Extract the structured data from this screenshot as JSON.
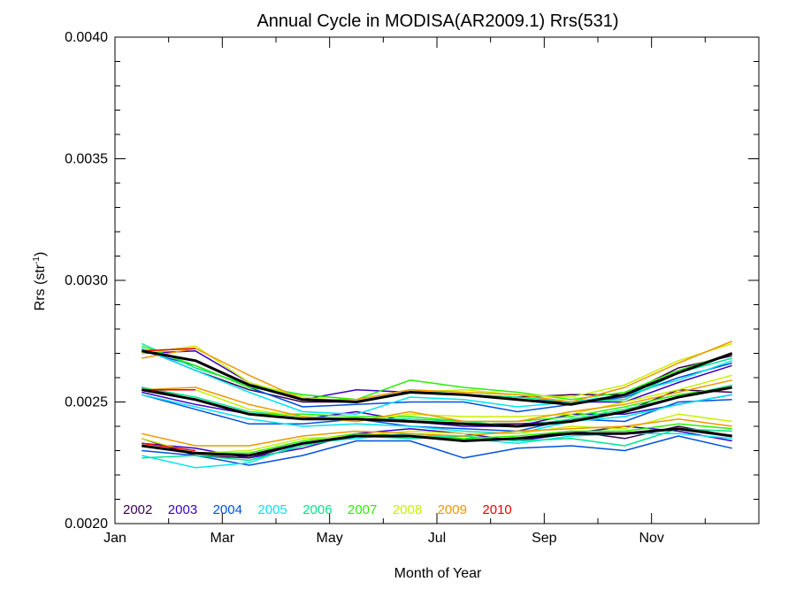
{
  "chart_data": {
    "type": "line",
    "title": "Annual Cycle in MODISA(AR2009.1) Rrs(531)",
    "xlabel": "Month of Year",
    "ylabel_main": "Rrs (str",
    "ylabel_sup": "-1",
    "ylabel_close": ")",
    "xlim": [
      0.5,
      12.5
    ],
    "ylim": [
      0.002,
      0.004
    ],
    "x_ticks": [
      {
        "value": 0.5,
        "label": "Jan"
      },
      {
        "value": 2.5,
        "label": "Mar"
      },
      {
        "value": 4.5,
        "label": "May"
      },
      {
        "value": 6.5,
        "label": "Jul"
      },
      {
        "value": 8.5,
        "label": "Sep"
      },
      {
        "value": 10.5,
        "label": "Nov"
      }
    ],
    "y_ticks": [
      {
        "value": 0.002,
        "label": "0.0020"
      },
      {
        "value": 0.0025,
        "label": "0.0025"
      },
      {
        "value": 0.003,
        "label": "0.0030"
      },
      {
        "value": 0.0035,
        "label": "0.0035"
      },
      {
        "value": 0.004,
        "label": "0.0040"
      }
    ],
    "x": [
      1,
      2,
      3,
      4,
      5,
      6,
      7,
      8,
      9,
      10,
      11,
      12
    ],
    "legend": [
      {
        "label": "2002",
        "color": "#3c0050"
      },
      {
        "label": "2003",
        "color": "#3a00c8"
      },
      {
        "label": "2004",
        "color": "#0050e0"
      },
      {
        "label": "2005",
        "color": "#00e6f0"
      },
      {
        "label": "2006",
        "color": "#00e68c"
      },
      {
        "label": "2007",
        "color": "#28f000"
      },
      {
        "label": "2008",
        "color": "#c8f000"
      },
      {
        "label": "2009",
        "color": "#f09600"
      },
      {
        "label": "2010",
        "color": "#f00000"
      }
    ],
    "series": [
      {
        "color": "#3c0050",
        "width": 1.5,
        "values": [
          0.00272,
          0.00263,
          0.00255,
          0.0025,
          0.0025,
          0.00254,
          0.00253,
          0.00252,
          0.00253,
          0.00253,
          0.00264,
          0.00269
        ]
      },
      {
        "color": "#3c0050",
        "width": 1.5,
        "values": [
          0.00256,
          0.00251,
          0.00245,
          0.00243,
          0.00243,
          0.00242,
          0.00241,
          0.00241,
          0.00242,
          0.00246,
          0.00255,
          0.00254
        ]
      },
      {
        "color": "#3c0050",
        "width": 1.5,
        "values": [
          0.00235,
          0.00228,
          0.00227,
          0.00233,
          0.00236,
          0.00236,
          0.00234,
          0.00235,
          0.00238,
          0.00235,
          0.0024,
          0.00236
        ]
      },
      {
        "color": "#3a00c8",
        "width": 1.5,
        "values": [
          0.0027,
          0.00271,
          0.00258,
          0.00251,
          0.00255,
          0.00254,
          0.00253,
          0.00251,
          0.0025,
          0.0025,
          0.00258,
          0.00265
        ]
      },
      {
        "color": "#3a00c8",
        "width": 1.5,
        "values": [
          0.00254,
          0.00249,
          0.00245,
          0.00243,
          0.00246,
          0.00242,
          0.0024,
          0.0024,
          0.00245,
          0.00245,
          0.00249,
          0.00253
        ]
      },
      {
        "color": "#3a00c8",
        "width": 1.5,
        "values": [
          0.00233,
          0.00231,
          0.00227,
          0.00231,
          0.00237,
          0.00239,
          0.00237,
          0.00234,
          0.00237,
          0.0024,
          0.00238,
          0.00234
        ]
      },
      {
        "color": "#0050e0",
        "width": 1.5,
        "values": [
          0.00271,
          0.00265,
          0.00256,
          0.00248,
          0.00249,
          0.0025,
          0.0025,
          0.00246,
          0.00249,
          0.00252,
          0.0026,
          0.00266
        ]
      },
      {
        "color": "#0050e0",
        "width": 1.5,
        "values": [
          0.00253,
          0.00247,
          0.00241,
          0.00241,
          0.00243,
          0.0024,
          0.00239,
          0.00238,
          0.00243,
          0.00242,
          0.0025,
          0.00251
        ]
      },
      {
        "color": "#0050e0",
        "width": 1.5,
        "values": [
          0.0023,
          0.00228,
          0.00224,
          0.00228,
          0.00234,
          0.00234,
          0.00227,
          0.00231,
          0.00232,
          0.0023,
          0.00236,
          0.00231
        ]
      },
      {
        "color": "#00e6f0",
        "width": 1.5,
        "values": [
          0.00272,
          0.00263,
          0.00254,
          0.00246,
          0.00245,
          0.00252,
          0.00251,
          0.00248,
          0.0025,
          0.00253,
          0.00259,
          0.00267
        ]
      },
      {
        "color": "#00e6f0",
        "width": 1.5,
        "values": [
          0.00253,
          0.00248,
          0.00243,
          0.0024,
          0.00241,
          0.0024,
          0.00238,
          0.00237,
          0.00242,
          0.00244,
          0.00249,
          0.00253
        ]
      },
      {
        "color": "#00e6f0",
        "width": 1.5,
        "values": [
          0.00228,
          0.00223,
          0.00225,
          0.00233,
          0.00235,
          0.00237,
          0.00235,
          0.00233,
          0.00236,
          0.00237,
          0.00237,
          0.00235
        ]
      },
      {
        "color": "#00e68c",
        "width": 1.5,
        "values": [
          0.00274,
          0.00264,
          0.00257,
          0.00253,
          0.00251,
          0.00255,
          0.00253,
          0.00252,
          0.0025,
          0.00251,
          0.00262,
          0.00268
        ]
      },
      {
        "color": "#00e68c",
        "width": 1.5,
        "values": [
          0.00256,
          0.00252,
          0.00246,
          0.00244,
          0.00243,
          0.00243,
          0.00242,
          0.0024,
          0.00243,
          0.00247,
          0.00252,
          0.00257
        ]
      },
      {
        "color": "#00e68c",
        "width": 1.5,
        "values": [
          0.00227,
          0.00228,
          0.00226,
          0.00232,
          0.00236,
          0.00235,
          0.00236,
          0.00234,
          0.00235,
          0.00232,
          0.00239,
          0.00238
        ]
      },
      {
        "color": "#28f000",
        "width": 1.5,
        "values": [
          0.00273,
          0.00265,
          0.00256,
          0.00253,
          0.00251,
          0.00259,
          0.00256,
          0.00254,
          0.00251,
          0.00254,
          0.00263,
          0.0027
        ]
      },
      {
        "color": "#28f000",
        "width": 1.5,
        "values": [
          0.00255,
          0.00251,
          0.00245,
          0.00245,
          0.00244,
          0.00244,
          0.00242,
          0.00242,
          0.00244,
          0.00248,
          0.00253,
          0.00256
        ]
      },
      {
        "color": "#28f000",
        "width": 1.5,
        "values": [
          0.00232,
          0.00229,
          0.00229,
          0.00234,
          0.00237,
          0.00236,
          0.00235,
          0.00236,
          0.00238,
          0.00238,
          0.00241,
          0.00239
        ]
      },
      {
        "color": "#c8f000",
        "width": 1.5,
        "values": [
          0.0027,
          0.00273,
          0.00258,
          0.00252,
          0.0025,
          0.00254,
          0.00255,
          0.00253,
          0.00252,
          0.00257,
          0.00267,
          0.00274
        ]
      },
      {
        "color": "#c8f000",
        "width": 1.5,
        "values": [
          0.00255,
          0.00255,
          0.00247,
          0.00244,
          0.00242,
          0.00245,
          0.00244,
          0.00244,
          0.00245,
          0.0025,
          0.00255,
          0.00261
        ]
      },
      {
        "color": "#c8f000",
        "width": 1.5,
        "values": [
          0.00235,
          0.00229,
          0.0023,
          0.00235,
          0.00236,
          0.00238,
          0.00237,
          0.00237,
          0.0024,
          0.00239,
          0.00245,
          0.00242
        ]
      },
      {
        "color": "#f09600",
        "width": 1.5,
        "values": [
          0.00268,
          0.00272,
          0.00261,
          0.00251,
          0.00251,
          0.00255,
          0.00254,
          0.00253,
          0.0025,
          0.00256,
          0.00266,
          0.00275
        ]
      },
      {
        "color": "#f09600",
        "width": 1.5,
        "values": [
          0.00255,
          0.00256,
          0.00249,
          0.00244,
          0.00242,
          0.00246,
          0.00242,
          0.00242,
          0.00246,
          0.00249,
          0.00254,
          0.00259
        ]
      },
      {
        "color": "#f09600",
        "width": 1.5,
        "values": [
          0.00237,
          0.00232,
          0.00232,
          0.00236,
          0.00238,
          0.00237,
          0.00236,
          0.00238,
          0.00239,
          0.0024,
          0.00243,
          0.0024
        ]
      },
      {
        "color": "#f00000",
        "width": 1.5,
        "values": [
          0.00271,
          0.00272,
          null,
          null,
          null,
          null,
          null,
          null,
          null,
          null,
          null,
          null
        ]
      },
      {
        "color": "#f00000",
        "width": 1.5,
        "values": [
          0.00255,
          0.00255,
          null,
          null,
          null,
          null,
          null,
          null,
          null,
          null,
          null,
          null
        ]
      },
      {
        "color": "#f00000",
        "width": 1.5,
        "values": [
          0.00233,
          0.0023,
          null,
          null,
          null,
          null,
          null,
          null,
          null,
          null,
          null,
          null
        ]
      },
      {
        "color": "#000000",
        "width": 3,
        "values": [
          0.00271,
          0.00267,
          0.00257,
          0.00251,
          0.0025,
          0.00254,
          0.00253,
          0.00251,
          0.00249,
          0.00253,
          0.00262,
          0.0027
        ]
      },
      {
        "color": "#000000",
        "width": 3,
        "values": [
          0.00255,
          0.00251,
          0.00245,
          0.00243,
          0.00243,
          0.00242,
          0.00241,
          0.0024,
          0.00242,
          0.00246,
          0.00252,
          0.00256
        ]
      },
      {
        "color": "#000000",
        "width": 3,
        "values": [
          0.00232,
          0.00229,
          0.00228,
          0.00233,
          0.00236,
          0.00236,
          0.00234,
          0.00235,
          0.00237,
          0.00237,
          0.00239,
          0.00236
        ]
      }
    ]
  }
}
